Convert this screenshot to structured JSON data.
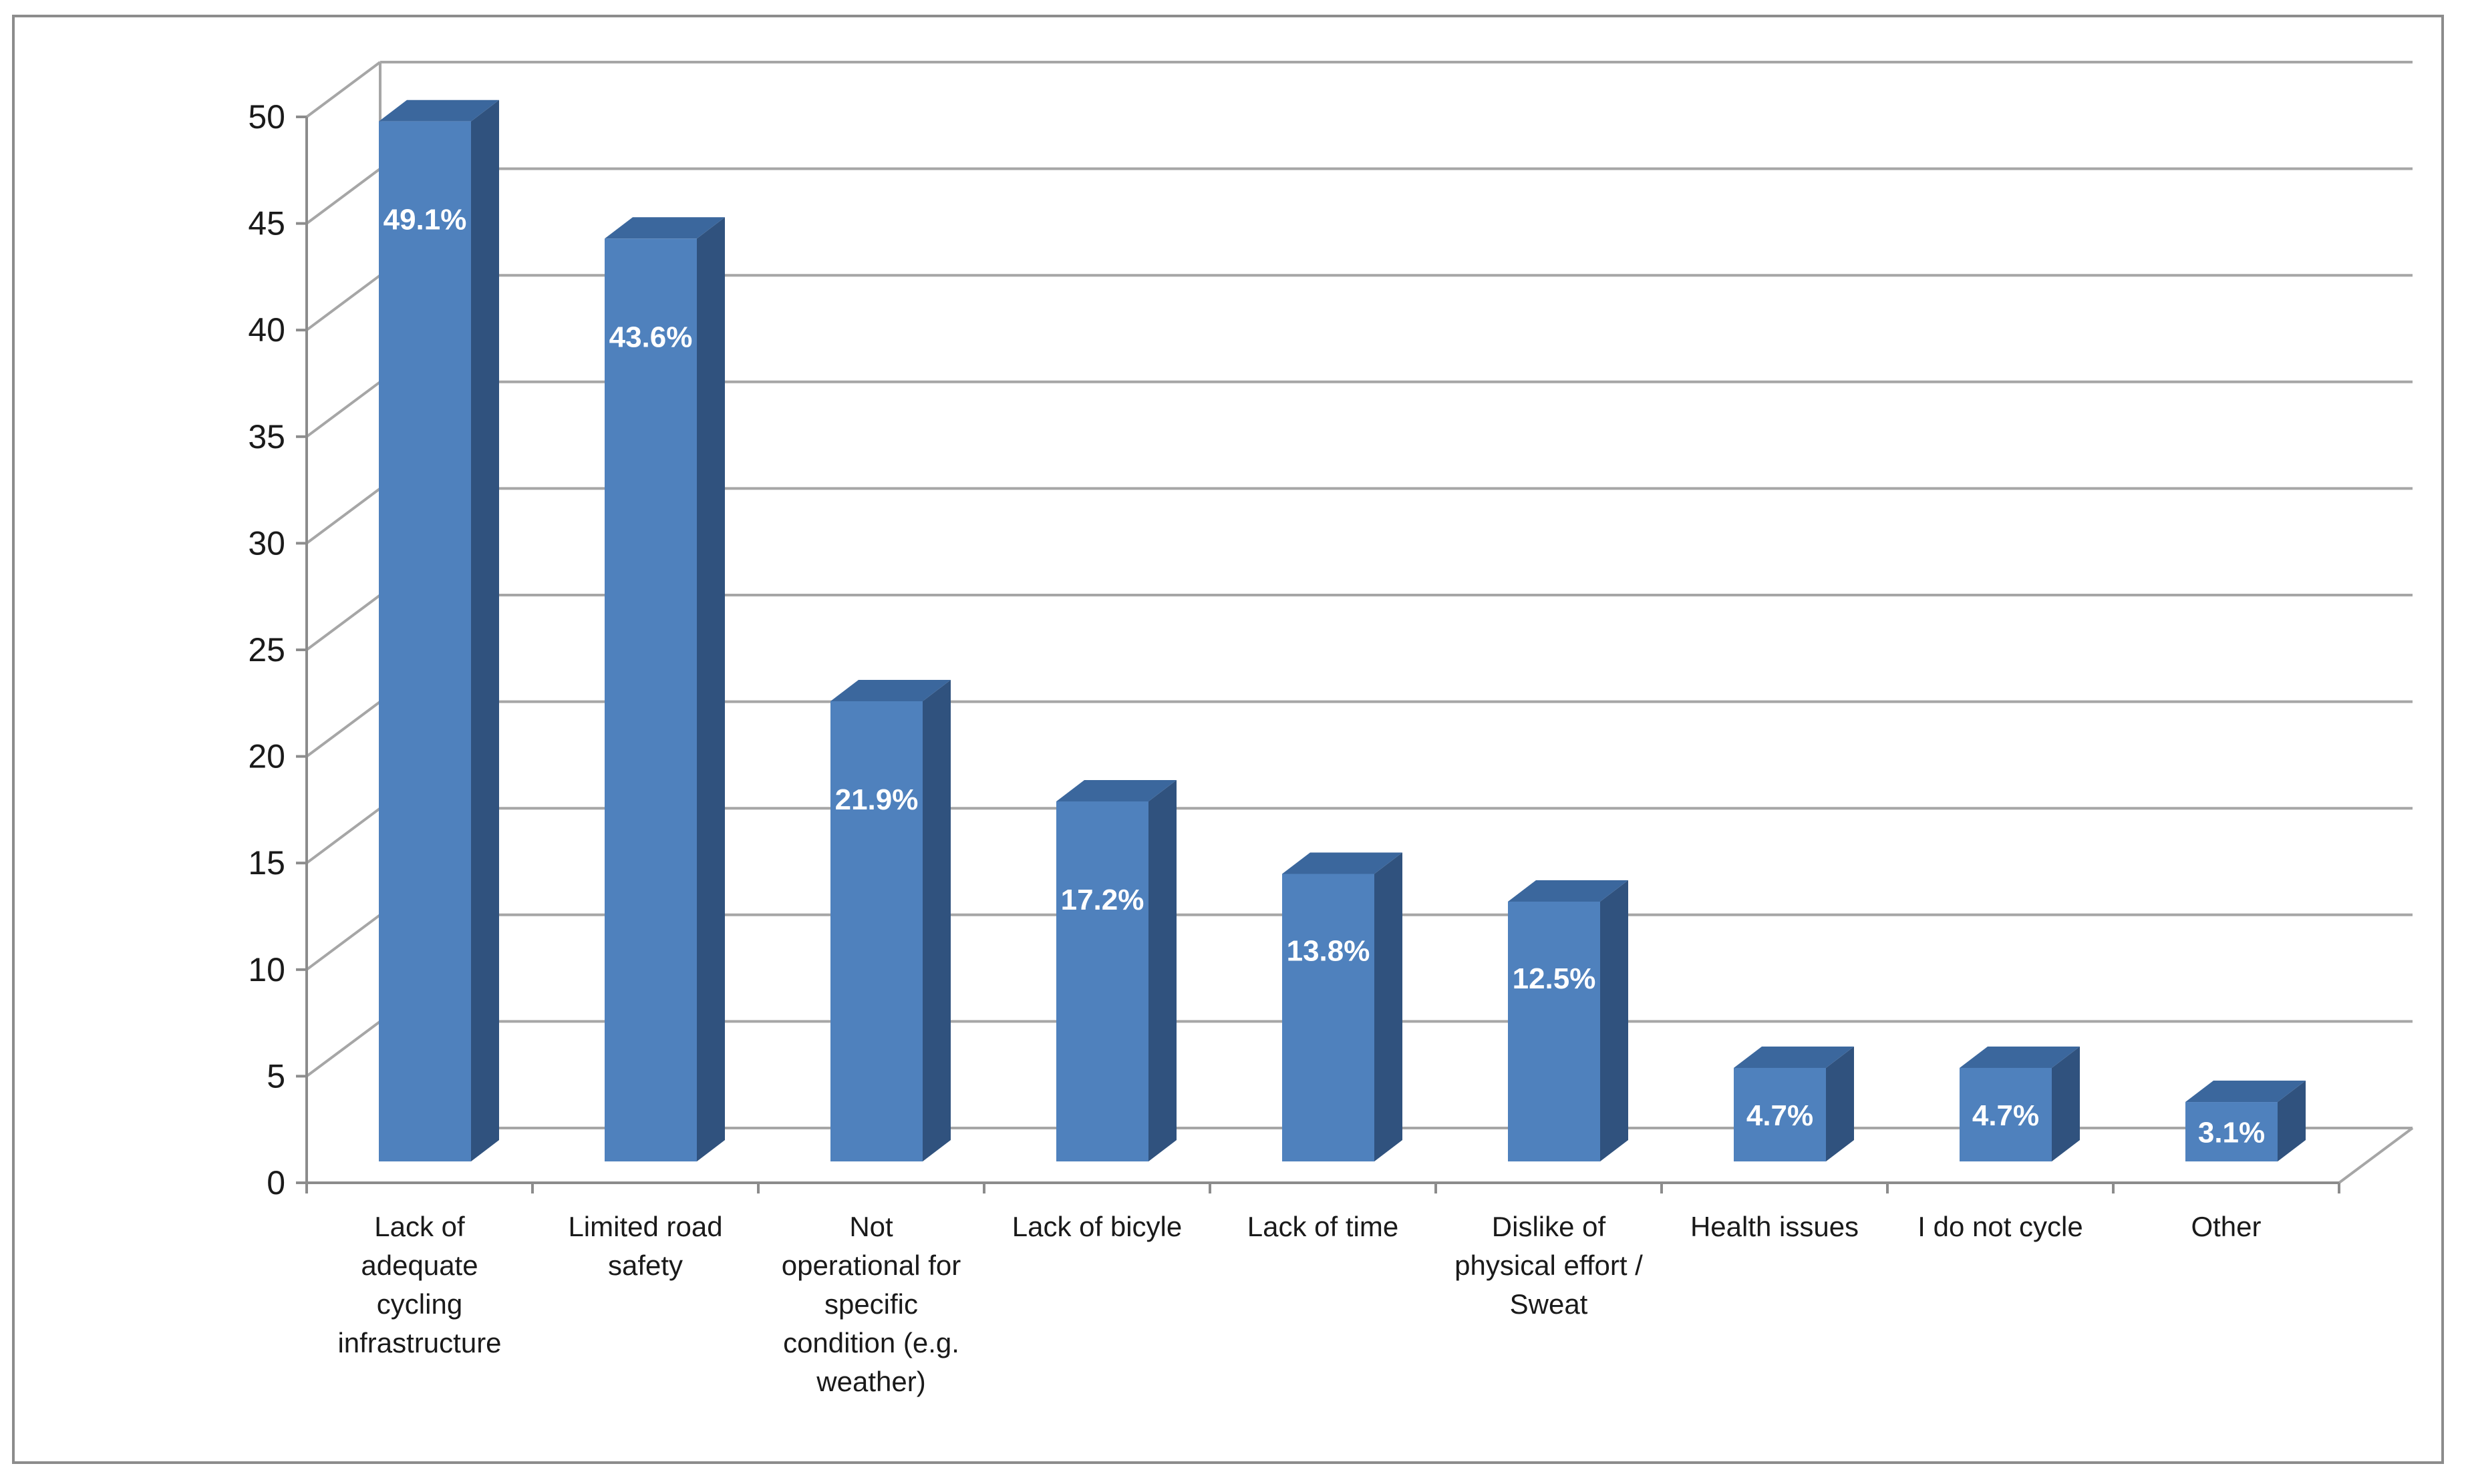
{
  "chart_data": {
    "type": "bar",
    "style": "3d-column",
    "title": "",
    "xlabel": "",
    "ylabel": "",
    "ylim": [
      0,
      50
    ],
    "yticks": [
      0,
      5,
      10,
      15,
      20,
      25,
      30,
      35,
      40,
      45,
      50
    ],
    "grid": true,
    "legend": "none",
    "categories": [
      [
        "Lack of",
        "adequate",
        "cycling",
        "infrastructure"
      ],
      [
        "Limited road",
        "safety"
      ],
      [
        "Not",
        "operational for",
        "specific",
        "condition (e.g.",
        "weather)"
      ],
      [
        "Lack of bicyle"
      ],
      [
        "Lack of time"
      ],
      [
        "Dislike of",
        "physical effort /",
        "Sweat"
      ],
      [
        "Health issues"
      ],
      [
        "I do not cycle"
      ],
      [
        "Other"
      ]
    ],
    "values": [
      49.1,
      43.6,
      21.9,
      17.2,
      13.8,
      12.5,
      4.7,
      4.7,
      3.1
    ],
    "data_labels": [
      "49.1%",
      "43.6%",
      "21.9%",
      "17.2%",
      "13.8%",
      "12.5%",
      "4.7%",
      "4.7%",
      "3.1%"
    ],
    "colors": {
      "bar_front": "#4f81bd",
      "bar_side": "#30527e",
      "bar_top": "#3b679d",
      "grid": "#a6a6a6",
      "axis": "#8c8c8c"
    }
  }
}
